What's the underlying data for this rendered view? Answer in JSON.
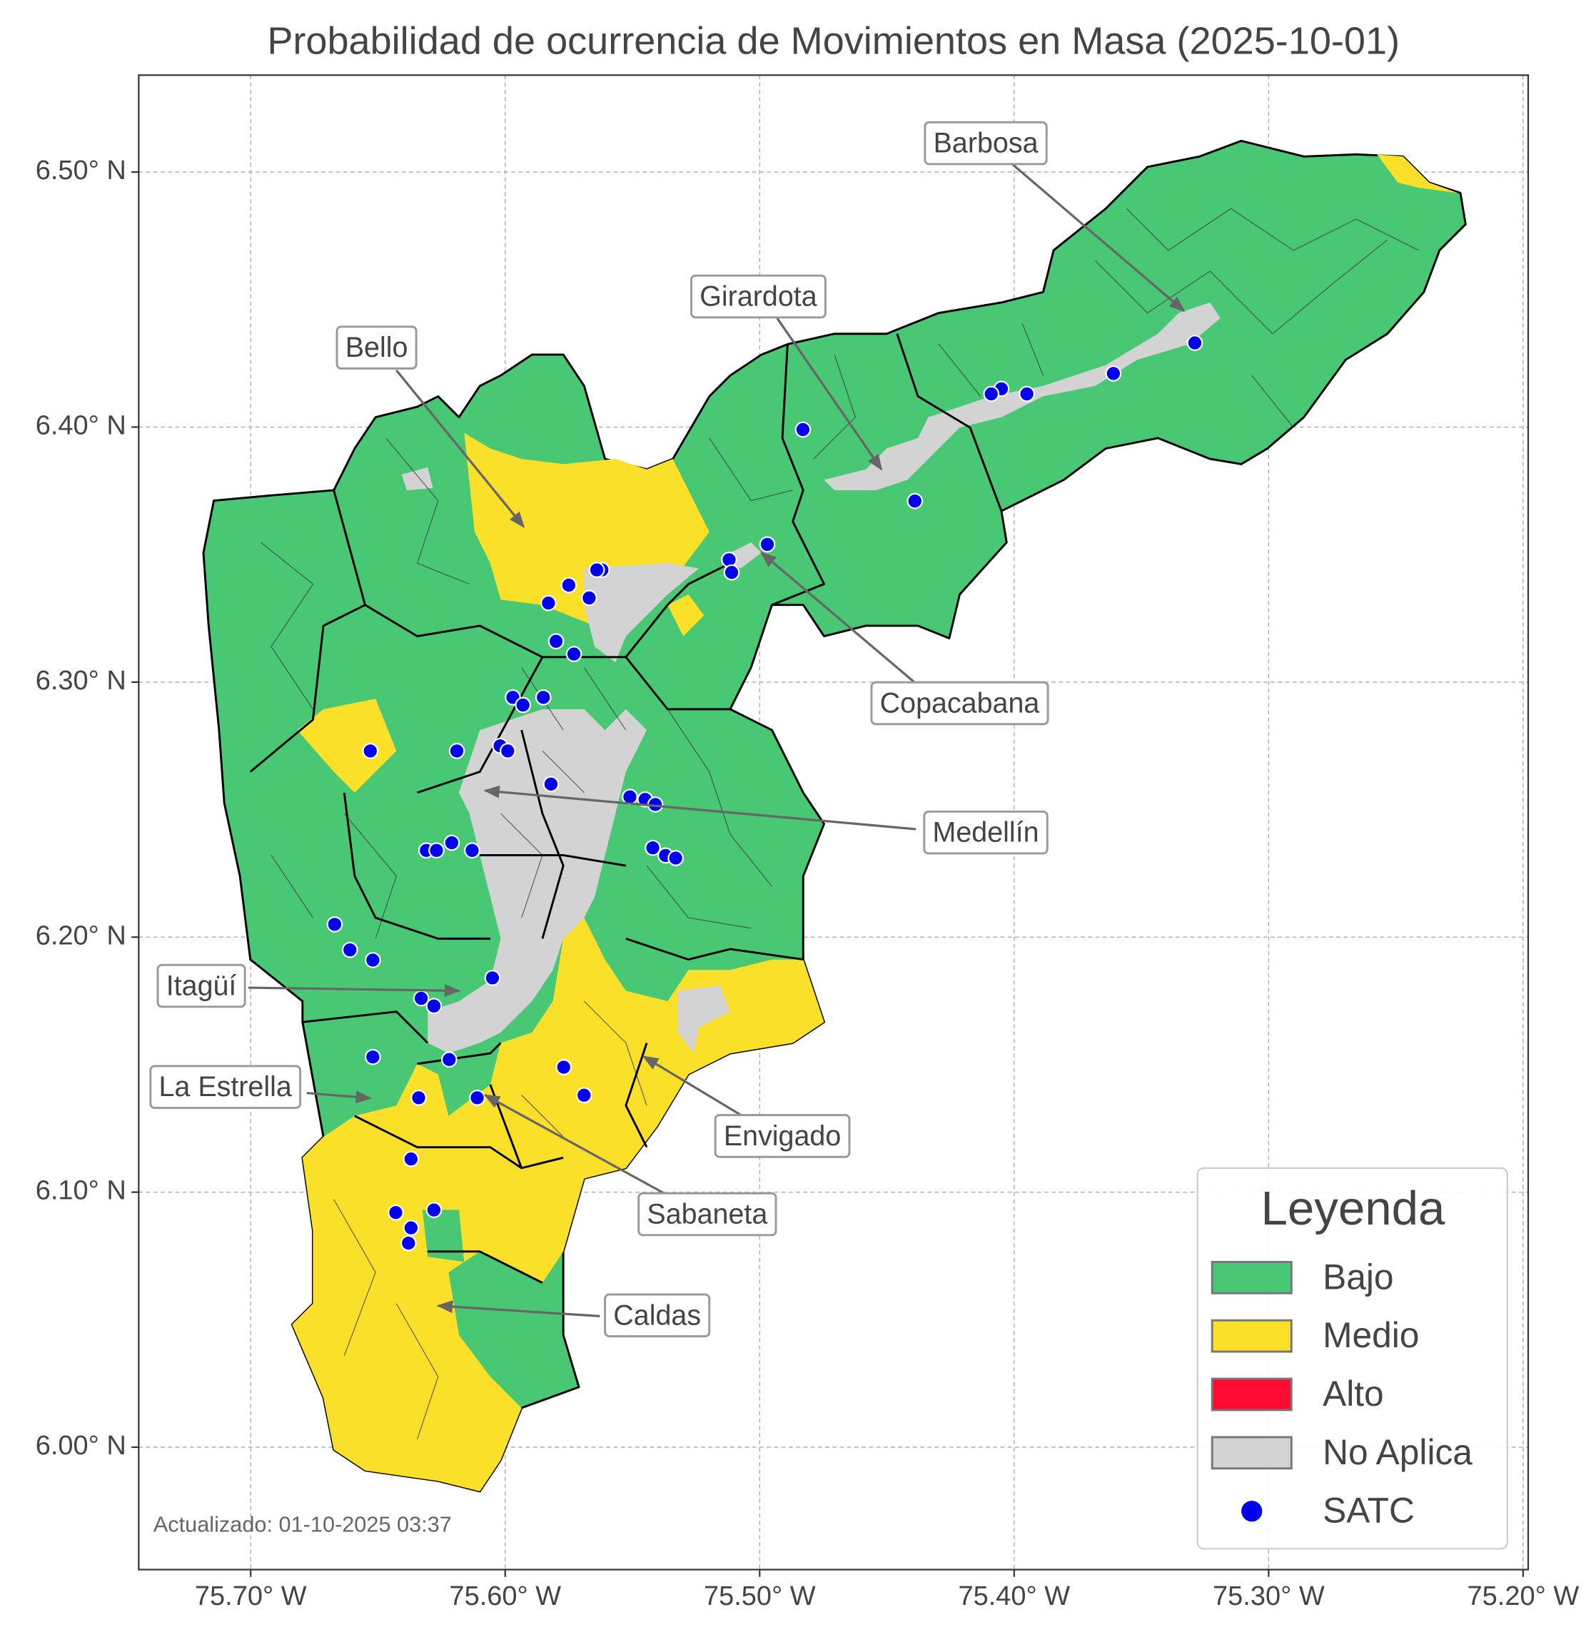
{
  "chart_data": {
    "type": "map",
    "title": "Probabilidad de ocurrencia de Movimientos en Masa (2025-10-01)",
    "xlim": [
      -75.744,
      -75.198
    ],
    "ylim": [
      5.952,
      6.538
    ],
    "xticks": [
      {
        "value": -75.7,
        "label": "75.70° W"
      },
      {
        "value": -75.6,
        "label": "75.60° W"
      },
      {
        "value": -75.5,
        "label": "75.50° W"
      },
      {
        "value": -75.4,
        "label": "75.40° W"
      },
      {
        "value": -75.3,
        "label": "75.30° W"
      },
      {
        "value": -75.2,
        "label": "75.20° W"
      }
    ],
    "yticks": [
      {
        "value": 6.0,
        "label": "6.00° N"
      },
      {
        "value": 6.1,
        "label": "6.10° N"
      },
      {
        "value": 6.2,
        "label": "6.20° N"
      },
      {
        "value": 6.3,
        "label": "6.30° N"
      },
      {
        "value": 6.4,
        "label": "6.40° N"
      },
      {
        "value": 6.5,
        "label": "6.50° N"
      }
    ],
    "grid": true,
    "legend": {
      "title": "Leyenda",
      "corner": "lower right"
    },
    "risk_levels": [
      {
        "name": "Bajo",
        "color": "#48c774"
      },
      {
        "name": "Medio",
        "color": "#fbe02a"
      },
      {
        "name": "Alto",
        "color": "#ff0a30"
      },
      {
        "name": "No Aplica",
        "color": "#d3d3d3"
      }
    ],
    "series": [
      {
        "name": "SATC",
        "color": "#0000ee",
        "x": [
          -75.329,
          -75.361,
          -75.395,
          -75.405,
          -75.409,
          -75.483,
          -75.439,
          -75.497,
          -75.512,
          -75.511,
          -75.562,
          -75.564,
          -75.575,
          -75.567,
          -75.583,
          -75.58,
          -75.573,
          -75.597,
          -75.593,
          -75.585,
          -75.619,
          -75.602,
          -75.599,
          -75.582,
          -75.551,
          -75.545,
          -75.541,
          -75.542,
          -75.537,
          -75.533,
          -75.631,
          -75.627,
          -75.621,
          -75.613,
          -75.653,
          -75.667,
          -75.661,
          -75.652,
          -75.605,
          -75.633,
          -75.628,
          -75.652,
          -75.622,
          -75.634,
          -75.611,
          -75.577,
          -75.569,
          -75.637,
          -75.643,
          -75.628,
          -75.637,
          -75.638
        ],
        "values": [
          6.433,
          6.421,
          6.413,
          6.415,
          6.413,
          6.399,
          6.371,
          6.354,
          6.348,
          6.343,
          6.344,
          6.344,
          6.338,
          6.333,
          6.331,
          6.316,
          6.311,
          6.294,
          6.291,
          6.294,
          6.273,
          6.275,
          6.273,
          6.26,
          6.255,
          6.254,
          6.252,
          6.235,
          6.232,
          6.231,
          6.234,
          6.234,
          6.237,
          6.234,
          6.273,
          6.205,
          6.195,
          6.191,
          6.184,
          6.176,
          6.173,
          6.153,
          6.152,
          6.137,
          6.137,
          6.149,
          6.138,
          6.113,
          6.092,
          6.093,
          6.086,
          6.08
        ]
      }
    ],
    "annotations": [
      "Barbosa",
      "Girardota",
      "Bello",
      "Copacabana",
      "Medellín",
      "Itagüí",
      "La Estrella",
      "Envigado",
      "Sabaneta",
      "Caldas"
    ],
    "updated": "Actualizado: 01-10-2025 03:37"
  }
}
